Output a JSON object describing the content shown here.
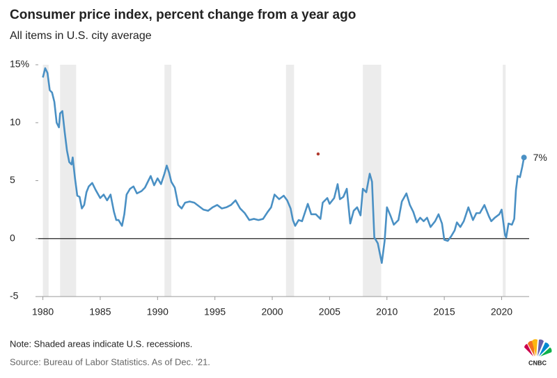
{
  "chart_data": {
    "type": "line",
    "title": "Consumer price index, percent change from a year ago",
    "subtitle": "All items in U.S. city average",
    "note": "Note: Shaded areas indicate U.S. recessions.",
    "source": "Source: Bureau of Labor Statistics. As of Dec. '21.",
    "brand": "CNBC",
    "xlim": [
      1979.6,
      2022.4
    ],
    "ylim": [
      -5,
      15
    ],
    "xticks": [
      1980,
      1985,
      1990,
      1995,
      2000,
      2005,
      2010,
      2015,
      2020
    ],
    "yticks": [
      {
        "value": 15,
        "label": "15%"
      },
      10,
      5,
      0,
      -5
    ],
    "grid": false,
    "zero_line": true,
    "recessions": [
      [
        1980.0,
        1980.5
      ],
      [
        1981.5,
        1982.9
      ],
      [
        1990.6,
        1991.2
      ],
      [
        2001.2,
        2001.9
      ],
      [
        2007.9,
        2009.5
      ],
      [
        2020.1,
        2020.35
      ]
    ],
    "recession_color": "#ececec",
    "marker": {
      "x": 2004,
      "y": 7.3,
      "color": "#b03a2e"
    },
    "annotations": [
      {
        "x": 2021.95,
        "y": 7,
        "text": "7%"
      }
    ],
    "series": [
      {
        "name": "CPI",
        "color": "#4a90c4",
        "x": [
          1980.0,
          1980.2,
          1980.4,
          1980.6,
          1980.8,
          1981.0,
          1981.2,
          1981.4,
          1981.5,
          1981.7,
          1981.9,
          1982.1,
          1982.3,
          1982.5,
          1982.6,
          1982.8,
          1983.0,
          1983.2,
          1983.4,
          1983.6,
          1983.8,
          1984.0,
          1984.3,
          1984.6,
          1985.0,
          1985.3,
          1985.6,
          1985.9,
          1986.2,
          1986.4,
          1986.6,
          1986.9,
          1987.1,
          1987.3,
          1987.6,
          1987.9,
          1988.2,
          1988.6,
          1988.9,
          1989.2,
          1989.4,
          1989.7,
          1990.0,
          1990.3,
          1990.6,
          1990.8,
          1991.0,
          1991.2,
          1991.5,
          1991.8,
          1992.1,
          1992.4,
          1992.8,
          1993.2,
          1993.6,
          1994.0,
          1994.4,
          1994.8,
          1995.2,
          1995.6,
          1996.0,
          1996.4,
          1996.8,
          1997.2,
          1997.6,
          1998.0,
          1998.4,
          1998.8,
          1999.2,
          1999.6,
          1999.9,
          2000.2,
          2000.6,
          2001.0,
          2001.3,
          2001.6,
          2001.8,
          2002.0,
          2002.3,
          2002.6,
          2002.9,
          2003.1,
          2003.4,
          2003.8,
          2004.2,
          2004.4,
          2004.8,
          2005.0,
          2005.4,
          2005.7,
          2005.9,
          2006.2,
          2006.5,
          2006.8,
          2007.1,
          2007.4,
          2007.7,
          2007.9,
          2008.2,
          2008.5,
          2008.7,
          2008.9,
          2009.2,
          2009.55,
          2009.8,
          2010.0,
          2010.3,
          2010.6,
          2011.0,
          2011.3,
          2011.7,
          2012.0,
          2012.3,
          2012.6,
          2012.9,
          2013.2,
          2013.5,
          2013.8,
          2014.2,
          2014.5,
          2014.8,
          2015.0,
          2015.3,
          2015.6,
          2015.9,
          2016.1,
          2016.4,
          2016.7,
          2016.9,
          2017.1,
          2017.5,
          2017.8,
          2018.1,
          2018.5,
          2018.9,
          2019.1,
          2019.4,
          2019.8,
          2020.0,
          2020.3,
          2020.4,
          2020.6,
          2020.9,
          2021.1,
          2021.25,
          2021.4,
          2021.6,
          2021.8,
          2021.95
        ],
        "values": [
          13.9,
          14.7,
          14.3,
          12.8,
          12.6,
          11.8,
          10.0,
          9.6,
          10.8,
          11.0,
          9.2,
          7.6,
          6.6,
          6.4,
          7.0,
          5.2,
          3.7,
          3.6,
          2.6,
          2.9,
          4.0,
          4.5,
          4.8,
          4.2,
          3.5,
          3.8,
          3.3,
          3.8,
          2.3,
          1.6,
          1.6,
          1.1,
          2.1,
          3.8,
          4.3,
          4.5,
          3.9,
          4.1,
          4.4,
          5.0,
          5.4,
          4.6,
          5.2,
          4.7,
          5.6,
          6.3,
          5.7,
          4.9,
          4.4,
          2.9,
          2.6,
          3.1,
          3.2,
          3.1,
          2.8,
          2.5,
          2.4,
          2.7,
          2.9,
          2.6,
          2.7,
          2.9,
          3.3,
          2.6,
          2.2,
          1.6,
          1.7,
          1.6,
          1.7,
          2.3,
          2.7,
          3.8,
          3.4,
          3.7,
          3.3,
          2.6,
          1.6,
          1.1,
          1.6,
          1.5,
          2.4,
          3.0,
          2.1,
          2.1,
          1.7,
          3.1,
          3.5,
          3.0,
          3.5,
          4.7,
          3.4,
          3.6,
          4.3,
          1.3,
          2.4,
          2.7,
          2.0,
          4.3,
          4.0,
          5.6,
          4.9,
          0.1,
          -0.4,
          -2.1,
          -0.2,
          2.7,
          2.0,
          1.2,
          1.6,
          3.2,
          3.9,
          2.9,
          2.3,
          1.4,
          1.8,
          1.5,
          1.8,
          1.0,
          1.5,
          2.1,
          1.3,
          -0.1,
          -0.2,
          0.2,
          0.7,
          1.4,
          1.0,
          1.5,
          2.1,
          2.7,
          1.6,
          2.2,
          2.2,
          2.9,
          1.9,
          1.5,
          1.8,
          2.1,
          2.5,
          0.3,
          0.1,
          1.3,
          1.2,
          1.7,
          4.2,
          5.4,
          5.3,
          6.2,
          7.0
        ]
      }
    ]
  }
}
